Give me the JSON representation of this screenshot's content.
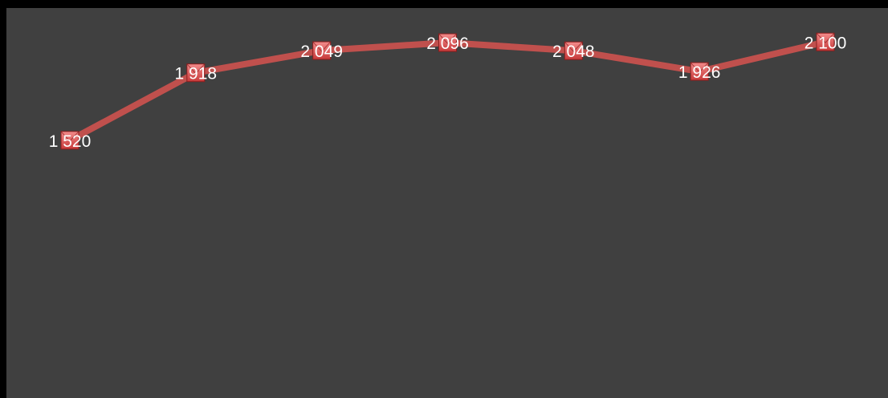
{
  "chart_data": {
    "type": "line",
    "title": "",
    "xlabel": "",
    "ylabel": "",
    "categories": [
      "",
      "",
      "",
      "",
      "",
      "",
      ""
    ],
    "series": [
      {
        "values": [
          1520,
          1918,
          2049,
          2096,
          2048,
          1926,
          2100
        ],
        "labels": [
          "1 520",
          "1 918",
          "2 049",
          "2 096",
          "2 048",
          "1 926",
          "2 100"
        ]
      }
    ],
    "ylim": [
      0,
      2300
    ],
    "grid": false,
    "legend": "none",
    "colors": {
      "background": "#000000",
      "plot_area": "#404040",
      "line": "#c0504d",
      "marker_fill": "#e46c6c",
      "marker_edge": "#8b1d1d",
      "label_text": "#ffffff"
    }
  }
}
